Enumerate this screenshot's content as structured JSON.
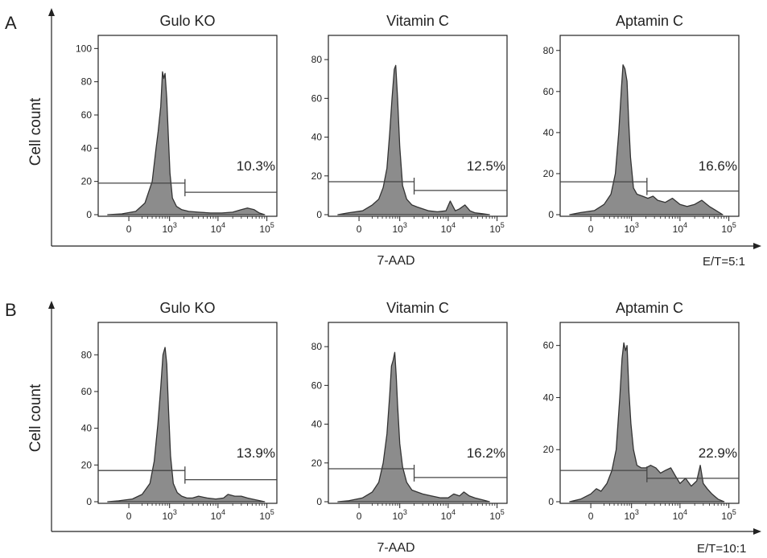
{
  "figure": {
    "et_ratio_a": "E/T=5:1",
    "et_ratio_b": "E/T=10:1"
  },
  "chart_data": [
    {
      "panel": "A",
      "type": "area",
      "ylabel": "Cell count",
      "xlabel": "7-AAD",
      "xticks": [
        {
          "value": 0,
          "label": "0"
        },
        {
          "value": 1000,
          "base": "10",
          "exp": "3"
        },
        {
          "value": 10000,
          "base": "10",
          "exp": "4"
        },
        {
          "value": 100000,
          "base": "10",
          "exp": "5"
        }
      ],
      "charts": [
        {
          "title": "Gulo KO",
          "ylim": [
            0,
            105
          ],
          "yticks": [
            0,
            20,
            40,
            60,
            80,
            100
          ],
          "gate_left_level": 19,
          "gate_right_level": 13.5,
          "gate_threshold": 2100,
          "percent": "10.3%",
          "x": [
            -350,
            -100,
            100,
            250,
            400,
            500,
            560,
            640,
            700,
            750,
            800,
            870,
            940,
            1020,
            1150,
            1400,
            1800,
            2500,
            4000,
            7000,
            12000,
            20000,
            30000,
            40000,
            55000,
            70000,
            90000
          ],
          "y": [
            0,
            0.5,
            2,
            7,
            20,
            40,
            50,
            65,
            86,
            82,
            85,
            70,
            48,
            25,
            10,
            5,
            3,
            2,
            1.5,
            1,
            1,
            1.5,
            3,
            4,
            3,
            1,
            0
          ]
        },
        {
          "title": "Vitamin C",
          "ylim": [
            0,
            90
          ],
          "yticks": [
            0,
            20,
            40,
            60,
            80
          ],
          "gate_left_level": 17,
          "gate_right_level": 12.5,
          "gate_threshold": 2000,
          "percent": "12.5%",
          "x": [
            -350,
            -150,
            50,
            200,
            320,
            420,
            520,
            600,
            680,
            760,
            820,
            900,
            1000,
            1150,
            1400,
            1800,
            2300,
            3000,
            4000,
            6000,
            9000,
            11000,
            14000,
            17000,
            22000,
            28000,
            35000,
            50000,
            70000
          ],
          "y": [
            0,
            1,
            2,
            5,
            8,
            14,
            24,
            42,
            60,
            75,
            77,
            60,
            35,
            15,
            8,
            5,
            4,
            3,
            2,
            1.5,
            2,
            7,
            2,
            3,
            5,
            2,
            1,
            0.5,
            0
          ]
        },
        {
          "title": "Aptamin C",
          "ylim": [
            0,
            85
          ],
          "yticks": [
            0,
            20,
            40,
            60,
            80
          ],
          "gate_left_level": 16,
          "gate_right_level": 11.5,
          "gate_threshold": 2100,
          "percent": "16.6%",
          "x": [
            -350,
            -150,
            50,
            200,
            330,
            430,
            520,
            600,
            650,
            720,
            800,
            870,
            950,
            1100,
            1300,
            1700,
            2200,
            2800,
            3500,
            5000,
            7000,
            10000,
            14000,
            20000,
            28000,
            40000,
            55000,
            75000
          ],
          "y": [
            0,
            1,
            2,
            5,
            10,
            20,
            40,
            62,
            73,
            71,
            65,
            45,
            28,
            13,
            10,
            9,
            8,
            9,
            7,
            6,
            8,
            5,
            4,
            5,
            7,
            4,
            2,
            0
          ]
        }
      ]
    },
    {
      "panel": "B",
      "type": "area",
      "ylabel": "Cell count",
      "xlabel": "7-AAD",
      "xticks": [
        {
          "value": 0,
          "label": "0"
        },
        {
          "value": 1000,
          "base": "10",
          "exp": "3"
        },
        {
          "value": 10000,
          "base": "10",
          "exp": "4"
        },
        {
          "value": 100000,
          "base": "10",
          "exp": "5"
        }
      ],
      "charts": [
        {
          "title": "Gulo KO",
          "ylim": [
            0,
            95
          ],
          "yticks": [
            0,
            20,
            40,
            60,
            80
          ],
          "gate_left_level": 17,
          "gate_right_level": 12,
          "gate_threshold": 2100,
          "percent": "13.9%",
          "x": [
            -350,
            -150,
            50,
            200,
            350,
            450,
            550,
            640,
            720,
            800,
            870,
            950,
            1050,
            1200,
            1450,
            1800,
            2300,
            3000,
            4000,
            6000,
            9000,
            13000,
            16000,
            22000,
            30000,
            40000,
            60000,
            90000
          ],
          "y": [
            0,
            0.5,
            1.5,
            4,
            10,
            22,
            42,
            62,
            80,
            84,
            75,
            50,
            25,
            10,
            5,
            3,
            2,
            2,
            3,
            2,
            1.5,
            2,
            4,
            3,
            3,
            2,
            1,
            0
          ]
        },
        {
          "title": "Vitamin C",
          "ylim": [
            0,
            90
          ],
          "yticks": [
            0,
            20,
            40,
            60,
            80
          ],
          "gate_left_level": 17,
          "gate_right_level": 12.5,
          "gate_threshold": 2000,
          "percent": "16.2%",
          "x": [
            -350,
            -150,
            50,
            200,
            320,
            420,
            520,
            600,
            660,
            720,
            780,
            840,
            900,
            1000,
            1150,
            1400,
            1800,
            2300,
            3000,
            4500,
            7000,
            10000,
            13000,
            17000,
            21000,
            27000,
            35000,
            50000,
            70000
          ],
          "y": [
            0,
            0.5,
            2,
            5,
            10,
            20,
            35,
            55,
            70,
            73,
            77,
            65,
            50,
            30,
            18,
            10,
            6,
            5,
            4,
            3,
            2,
            2,
            4,
            3,
            5,
            3,
            2,
            1,
            0
          ]
        },
        {
          "title": "Aptamin C",
          "ylim": [
            0,
            67
          ],
          "yticks": [
            0,
            20,
            40,
            60
          ],
          "gate_left_level": 12,
          "gate_right_level": 9,
          "gate_threshold": 2100,
          "percent": "22.9%",
          "x": [
            -350,
            -150,
            0,
            80,
            150,
            250,
            350,
            450,
            550,
            620,
            680,
            740,
            800,
            880,
            970,
            1100,
            1300,
            1600,
            2000,
            2500,
            3200,
            4000,
            5000,
            6500,
            8000,
            10000,
            13000,
            17000,
            22000,
            26000,
            30000,
            36000,
            45000,
            60000,
            80000
          ],
          "y": [
            0,
            1,
            3,
            5,
            4,
            7,
            12,
            20,
            40,
            55,
            61,
            58,
            60,
            42,
            30,
            20,
            14,
            13,
            13,
            14,
            13,
            11,
            12,
            13,
            10,
            7,
            9,
            6,
            8,
            14,
            7,
            5,
            3,
            1,
            0
          ]
        }
      ]
    }
  ]
}
